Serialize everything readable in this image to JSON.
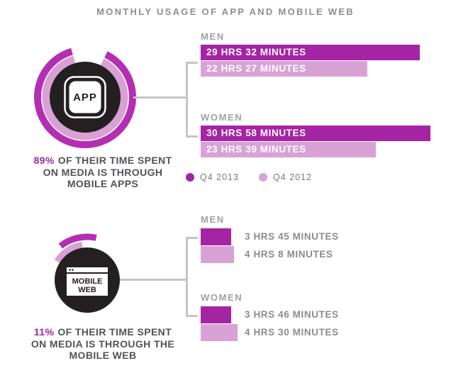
{
  "title": "MONTHLY USAGE OF APP AND MOBILE WEB",
  "colors": {
    "q4_2013": "#a424a4",
    "q4_2012": "#d9a2d7",
    "arc_2013": "#b42eb2",
    "arc_2012": "#d9a0d3",
    "icon_black": "#241f21",
    "highlight_text": "#a424a4",
    "muted_gray": "#8b8e90"
  },
  "legend": {
    "items": [
      {
        "label": "Q4 2013",
        "color": "#a424a4"
      },
      {
        "label": "Q4 2012",
        "color": "#d9a2d7"
      }
    ]
  },
  "sections": {
    "app": {
      "icon_label": "APP",
      "caption": {
        "pct": "89%",
        "line1_rest": "OF THEIR TIME SPENT",
        "line2": "ON MEDIA IS THROUGH",
        "line3": "MOBILE APPS"
      }
    },
    "mobile_web": {
      "icon_line1": "MOBILE",
      "icon_line2": "WEB",
      "caption": {
        "pct": "11%",
        "line1_rest": "OF THEIR TIME SPENT",
        "line2": "ON MEDIA IS THROUGH THE",
        "line3": "MOBILE WEB"
      }
    }
  },
  "chart_data": [
    {
      "type": "bar",
      "title": "MONTHLY USAGE OF APP AND MOBILE WEB — MOBILE APPS",
      "categories": [
        "MEN",
        "WOMEN"
      ],
      "series": [
        {
          "name": "Q4 2013",
          "color": "#a424a4",
          "values": [
            29.53,
            30.97
          ],
          "labels": [
            "29 HRS 32 MINUTES",
            "30 HRS 58 MINUTES"
          ]
        },
        {
          "name": "Q4 2012",
          "color": "#d9a2d7",
          "values": [
            22.45,
            23.65
          ],
          "labels": [
            "22 HRS 27 MINUTES",
            "23 HRS 39 MINUTES"
          ]
        }
      ],
      "unit": "hours per month",
      "xlim": [
        0,
        31
      ],
      "orientation": "horizontal",
      "legend_position": "bottom",
      "annotation": "89% OF THEIR TIME SPENT ON MEDIA IS THROUGH MOBILE APPS"
    },
    {
      "type": "bar",
      "title": "MONTHLY USAGE OF APP AND MOBILE WEB — MOBILE WEB",
      "categories": [
        "MEN",
        "WOMEN"
      ],
      "series": [
        {
          "name": "Q4 2013",
          "color": "#a424a4",
          "values": [
            3.75,
            3.77
          ],
          "labels": [
            "3 HRS 45 MINUTES",
            "3 HRS 46 MINUTES"
          ]
        },
        {
          "name": "Q4 2012",
          "color": "#d9a2d7",
          "values": [
            4.13,
            4.5
          ],
          "labels": [
            "4 HRS 8 MINUTES",
            "4 HRS 30 MINUTES"
          ]
        }
      ],
      "unit": "hours per month",
      "xlim": [
        0,
        5
      ],
      "orientation": "horizontal",
      "legend_position": "none",
      "annotation": "11% OF THEIR TIME SPENT ON MEDIA IS THROUGH THE MOBILE WEB"
    }
  ]
}
